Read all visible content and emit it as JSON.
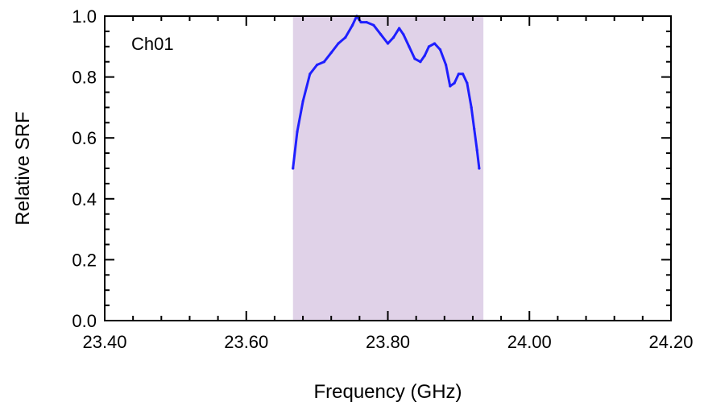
{
  "chart_data": {
    "type": "line",
    "annotation": "Ch01",
    "xlabel": "Frequency (GHz)",
    "ylabel": "Relative SRF",
    "xlim": [
      23.4,
      24.2
    ],
    "ylim": [
      0.0,
      1.0
    ],
    "x_ticks": [
      "23.40",
      "23.60",
      "23.80",
      "24.00",
      "24.20"
    ],
    "y_ticks": [
      "0.0",
      "0.2",
      "0.4",
      "0.6",
      "0.8",
      "1.0"
    ],
    "grid": false,
    "band": {
      "x": [
        23.666,
        23.935
      ],
      "color": "#e0d2e8"
    },
    "series": [
      {
        "color": "#1f1fff",
        "x": [
          23.666,
          23.672,
          23.68,
          23.69,
          23.7,
          23.71,
          23.72,
          23.73,
          23.74,
          23.75,
          23.756,
          23.762,
          23.77,
          23.78,
          23.79,
          23.8,
          23.808,
          23.816,
          23.822,
          23.83,
          23.838,
          23.846,
          23.852,
          23.858,
          23.866,
          23.874,
          23.882,
          23.888,
          23.894,
          23.9,
          23.906,
          23.912,
          23.918,
          23.922,
          23.926,
          23.929
        ],
        "y": [
          0.5,
          0.62,
          0.72,
          0.81,
          0.84,
          0.85,
          0.88,
          0.91,
          0.93,
          0.97,
          1.0,
          0.98,
          0.98,
          0.97,
          0.94,
          0.91,
          0.93,
          0.96,
          0.94,
          0.9,
          0.86,
          0.85,
          0.87,
          0.9,
          0.91,
          0.89,
          0.84,
          0.77,
          0.78,
          0.81,
          0.81,
          0.78,
          0.7,
          0.63,
          0.56,
          0.5
        ]
      }
    ]
  }
}
